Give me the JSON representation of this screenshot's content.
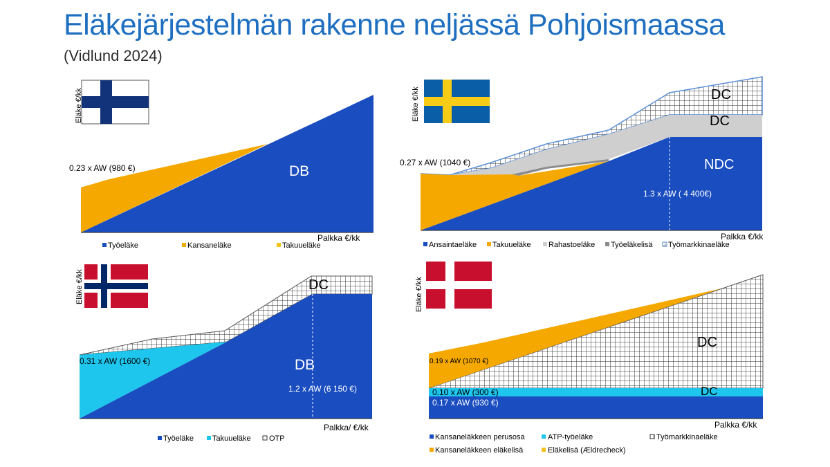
{
  "title": "Eläkejärjestelmän rakenne neljässä Pohjoismaassa",
  "subtitle": "(Vidlund 2024)",
  "colors": {
    "dark_blue": "#1a4dbf",
    "orange": "#f5a800",
    "yellow": "#f2c21a",
    "light_blue": "#1ec6ee",
    "light_grey": "#cfcfcf",
    "grey": "#8c8c8c",
    "grid_line": "#333333"
  },
  "chart_data": [
    {
      "country": "Finland",
      "flag": "finland-flag",
      "type": "area",
      "ylabel": "Eläke €/kk",
      "xlabel": "Palkka €/kk",
      "annotations": [
        {
          "key": "floor",
          "text": "0.23 x AW (980 €)"
        },
        {
          "key": "db",
          "text": "DB"
        }
      ],
      "legend": [
        {
          "name": "Työeläke",
          "color": "#1a4dbf",
          "pattern": "solid"
        },
        {
          "name": "Kansaneläke",
          "color": "#f5a800",
          "pattern": "solid"
        },
        {
          "name": "Takuueläke",
          "color": "#f2c21a",
          "pattern": "solid"
        }
      ]
    },
    {
      "country": "Sweden",
      "flag": "sweden-flag",
      "type": "area",
      "ylabel": "Eläke €/kk",
      "xlabel": "Palkka €/kk",
      "annotations": [
        {
          "key": "floor",
          "text": "0.27 x AW (1040 €)"
        },
        {
          "key": "dc_top",
          "text": "DC"
        },
        {
          "key": "dc_mid",
          "text": "DC"
        },
        {
          "key": "ndc",
          "text": "NDC"
        },
        {
          "key": "ceiling",
          "text": "1.3 x AW ( 4 400€)"
        }
      ],
      "legend": [
        {
          "name": "Ansaintaeläke",
          "color": "#1a4dbf",
          "pattern": "solid"
        },
        {
          "name": "Takuueläke",
          "color": "#f5a800",
          "pattern": "solid"
        },
        {
          "name": "Rahastoeläke",
          "color": "#cfcfcf",
          "pattern": "solid"
        },
        {
          "name": "Työeläkelisä",
          "color": "#8c8c8c",
          "pattern": "solid"
        },
        {
          "name": "Työmarkkinaeläke",
          "color": "#5b8fd6",
          "pattern": "grid"
        }
      ]
    },
    {
      "country": "Norway",
      "flag": "norway-flag",
      "type": "area",
      "ylabel": "Eläke €/kk",
      "xlabel": "Palkka/ €/kk",
      "annotations": [
        {
          "key": "floor",
          "text": "0.31 x AW (1600 €)"
        },
        {
          "key": "dc",
          "text": "DC"
        },
        {
          "key": "db",
          "text": "DB"
        },
        {
          "key": "ceiling",
          "text": "1.2 x AW (6 150 €)"
        }
      ],
      "legend": [
        {
          "name": "Työeläke",
          "color": "#1a4dbf",
          "pattern": "solid"
        },
        {
          "name": "Takuueläke",
          "color": "#1ec6ee",
          "pattern": "solid"
        },
        {
          "name": "OTP",
          "color": "#333333",
          "pattern": "grid"
        }
      ]
    },
    {
      "country": "Denmark",
      "flag": "denmark-flag",
      "type": "area",
      "ylabel": "Eläke €/kk",
      "xlabel": "Palkka €/kk",
      "annotations": [
        {
          "key": "dc_top",
          "text": "DC"
        },
        {
          "key": "supplement",
          "text": "0.19 x AW (1070 €)"
        },
        {
          "key": "atp",
          "text": "0.10 x AW (300 €)"
        },
        {
          "key": "dc_low",
          "text": "DC"
        },
        {
          "key": "base",
          "text": "0.17 x AW (930 €)"
        }
      ],
      "legend": [
        {
          "name": "Kansaneläkkeen perusosa",
          "color": "#1a4dbf",
          "pattern": "solid"
        },
        {
          "name": "ATP-työeläke",
          "color": "#1ec6ee",
          "pattern": "solid"
        },
        {
          "name": "Työmarkkinaeläke",
          "color": "#333333",
          "pattern": "grid"
        },
        {
          "name": "Kansaneläkkeen eläkelisä",
          "color": "#f5a800",
          "pattern": "solid"
        },
        {
          "name": "Eläkelisä (Ældrecheck)",
          "color": "#f2c21a",
          "pattern": "solid"
        }
      ]
    }
  ]
}
